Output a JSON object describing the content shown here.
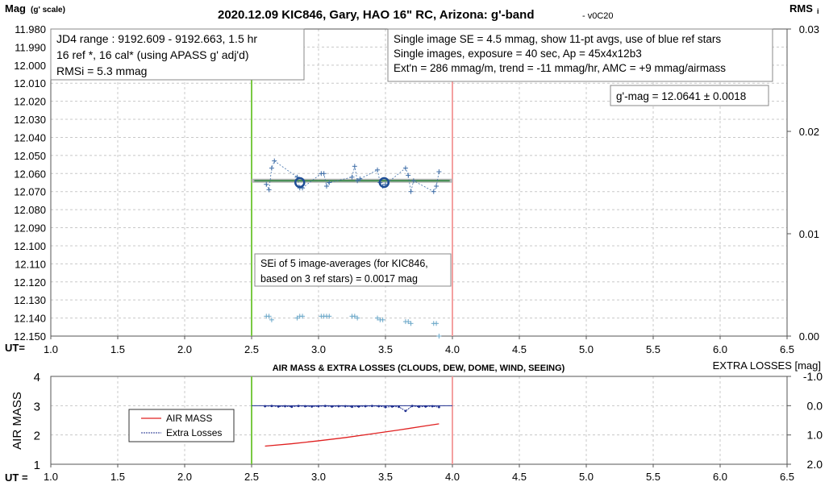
{
  "chart_data": [
    {
      "type": "scatter",
      "title": "2020.12.09 KIC846, Gary, HAO 16\" RC, Arizona: g'-band",
      "version": "- v0C20",
      "ylabel_main": "Mag",
      "ylabel_sub": "(g' scale)",
      "ylabel_right_main": "RMS",
      "ylabel_right_sub": "i",
      "xlabel": "UT=",
      "xlim": [
        1.0,
        6.5
      ],
      "x_ticks": [
        "1.0",
        "1.5",
        "2.0",
        "2.5",
        "3.0",
        "3.5",
        "4.0",
        "4.5",
        "5.0",
        "5.5",
        "6.0",
        "6.5"
      ],
      "ylim": [
        12.15,
        11.98
      ],
      "y_ticks": [
        "11.980",
        "11.990",
        "12.000",
        "12.010",
        "12.020",
        "12.030",
        "12.040",
        "12.050",
        "12.060",
        "12.070",
        "12.080",
        "12.090",
        "12.100",
        "12.110",
        "12.120",
        "12.130",
        "12.140",
        "12.150"
      ],
      "y2lim": [
        0.0,
        0.03
      ],
      "y2_ticks": [
        "0.00",
        "0.01",
        "0.02",
        "0.03"
      ],
      "vlines": [
        {
          "x": 2.5,
          "color": "#7ac943"
        },
        {
          "x": 4.0,
          "color": "#f4a0a0"
        }
      ],
      "avg_line": {
        "x_start": 2.5,
        "x_end": 4.0,
        "y": 12.064
      },
      "series": [
        {
          "marker": "plus",
          "color": "#3f6ea8",
          "x": [
            2.61,
            2.63,
            2.65,
            2.67,
            2.84,
            2.86,
            2.88,
            3.02,
            3.04,
            3.06,
            3.08,
            3.25,
            3.27,
            3.29,
            3.31,
            3.44,
            3.46,
            3.48,
            3.5,
            3.65,
            3.67,
            3.69,
            3.71,
            3.86,
            3.88,
            3.9
          ],
          "y": [
            12.066,
            12.069,
            12.057,
            12.053,
            12.062,
            12.068,
            12.068,
            12.06,
            12.06,
            12.067,
            12.065,
            12.062,
            12.056,
            12.064,
            12.063,
            12.058,
            12.065,
            12.067,
            12.066,
            12.057,
            12.061,
            12.07,
            12.064,
            12.07,
            12.067,
            12.059
          ]
        },
        {
          "marker": "circle",
          "color": "#1f4e96",
          "x": [
            2.86,
            3.49
          ],
          "y": [
            12.065,
            12.065
          ]
        },
        {
          "marker": "plus",
          "color": "#6aa7c8",
          "x": [
            2.61,
            2.63,
            2.65,
            2.84,
            2.86,
            2.88,
            3.02,
            3.04,
            3.06,
            3.08,
            3.25,
            3.27,
            3.29,
            3.44,
            3.46,
            3.48,
            3.65,
            3.67,
            3.69,
            3.86,
            3.88,
            3.9
          ],
          "y": [
            12.139,
            12.139,
            12.141,
            12.14,
            12.139,
            12.139,
            12.139,
            12.139,
            12.139,
            12.139,
            12.139,
            12.139,
            12.14,
            12.14,
            12.141,
            12.141,
            12.142,
            12.142,
            12.143,
            12.143,
            12.143,
            12.15
          ]
        }
      ],
      "info_left": [
        "JD4 range : 9192.609 - 9192.663,  1.5  hr",
        "16 ref *, 16 cal* (using APASS g' adj'd)",
        "RMSi = 5.3 mmag"
      ],
      "info_right": [
        "Single image SE = 4.5 mmag, show  11-pt avgs, use of blue ref stars",
        "Single images, exposure = 40 sec, Ap = 45x4x12b3",
        "Ext'n = 286 mmag/m, trend =  -11 mmag/hr, AMC = +9 mmag/airmass"
      ],
      "gmag_box": "g'-mag = 12.0641 ± 0.0018",
      "sei_box": [
        "SEi of 5 image-averages (for KIC846,",
        "based on 3 ref stars) = 0.0017 mag"
      ]
    },
    {
      "type": "line",
      "title": "AIR MASS & EXTRA LOSSES (CLOUDS, DEW, DOME, WIND, SEEING)",
      "ylabel": "AIR MASS",
      "ylabel_right": "EXTRA LOSSES [mag]",
      "xlabel": "UT =",
      "xlim": [
        1.0,
        6.5
      ],
      "x_ticks": [
        "1.0",
        "1.5",
        "2.0",
        "2.5",
        "3.0",
        "3.5",
        "4.0",
        "4.5",
        "5.0",
        "5.5",
        "6.0",
        "6.5"
      ],
      "ylim": [
        1,
        4
      ],
      "y_ticks": [
        "1",
        "2",
        "3",
        "4"
      ],
      "y2lim": [
        2.0,
        -1.0
      ],
      "y2_ticks": [
        "-1.0",
        "0.0",
        "1.0",
        "2.0"
      ],
      "vlines": [
        {
          "x": 2.5,
          "color": "#7ac943"
        },
        {
          "x": 4.0,
          "color": "#f4a0a0"
        }
      ],
      "series": [
        {
          "name": "AIR MASS",
          "color": "#e02020",
          "x": [
            2.6,
            2.8,
            3.0,
            3.2,
            3.4,
            3.6,
            3.8,
            3.9
          ],
          "y": [
            1.62,
            1.7,
            1.8,
            1.91,
            2.04,
            2.17,
            2.31,
            2.38
          ]
        },
        {
          "name": "Extra Losses",
          "color": "#1f2f8f",
          "x": [
            2.6,
            2.65,
            2.7,
            2.75,
            2.8,
            2.85,
            2.9,
            2.95,
            3.0,
            3.05,
            3.1,
            3.15,
            3.2,
            3.25,
            3.3,
            3.35,
            3.4,
            3.45,
            3.5,
            3.55,
            3.6,
            3.65,
            3.7,
            3.75,
            3.8,
            3.85,
            3.9
          ],
          "y": [
            0.02,
            0.01,
            0.03,
            0.02,
            0.04,
            0.01,
            0.02,
            0.03,
            0.02,
            0.01,
            0.03,
            0.02,
            0.02,
            0.04,
            0.03,
            0.02,
            0.01,
            0.02,
            0.05,
            0.03,
            0.04,
            0.18,
            0.01,
            0.04,
            0.03,
            0.02,
            0.05
          ]
        }
      ],
      "legend": [
        "AIR MASS",
        "Extra Losses"
      ],
      "ref_line": {
        "y2": 0.0,
        "x_start": 2.5,
        "x_end": 4.0,
        "color": "#1f2f8f"
      }
    }
  ]
}
